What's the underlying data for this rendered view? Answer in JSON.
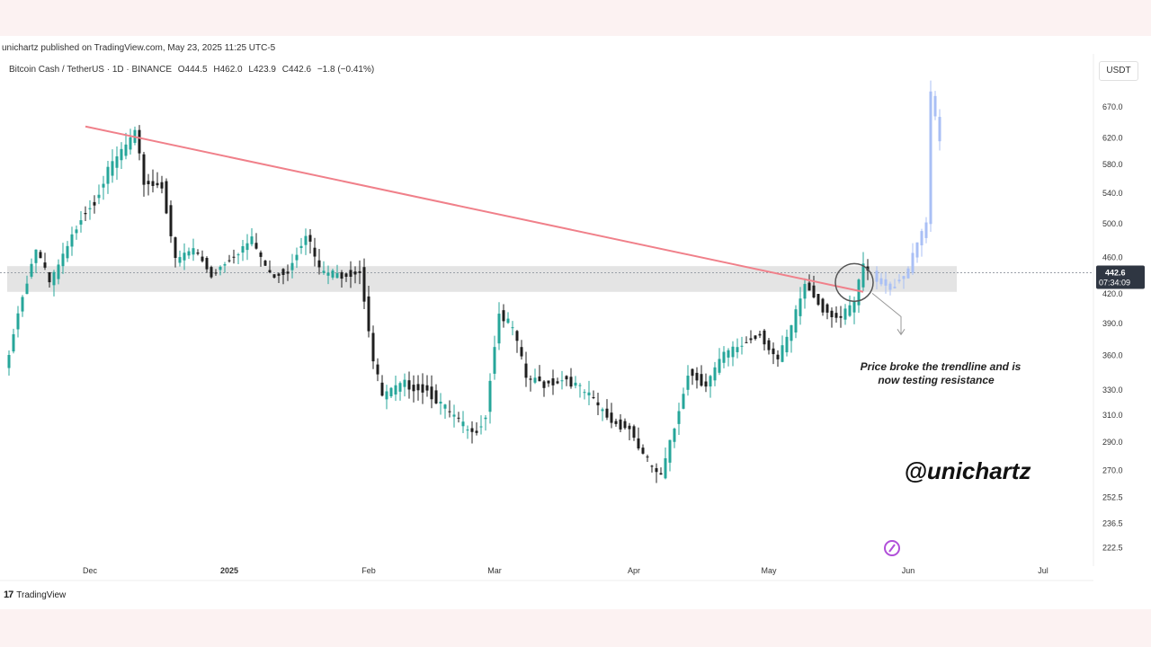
{
  "publisher_line": "unichartz published on TradingView.com, May 23, 2025 11:25 UTC-5",
  "symbol": {
    "name": "Bitcoin Cash / TetherUS · 1D · BINANCE",
    "open": "O444.5",
    "high": "H462.0",
    "low": "L423.9",
    "close": "C442.6",
    "change": "−1.8 (−0.41%)"
  },
  "unit_label": "USDT",
  "brand": "TradingView",
  "colors": {
    "up": "#26a69a",
    "down": "#1f1f1f",
    "trendline": "#f0808a",
    "resistance_band": "#e4e4e4",
    "projection": "#a9bff5",
    "price_label_bg": "#2f3642"
  },
  "annotation": {
    "line1": "Price broke the trendline and is",
    "line2": "now testing resistance"
  },
  "watermark": "@unichartz",
  "chart_data": {
    "type": "candlestick",
    "title": "Bitcoin Cash / TetherUS · 1D · BINANCE",
    "ylabel": "USDT",
    "y_scale": "log",
    "ylim": [
      215,
      715
    ],
    "x_ticks": [
      "Dec",
      "2025",
      "Feb",
      "Mar",
      "Apr",
      "May",
      "Jun",
      "Jul"
    ],
    "y_ticks": [
      670.0,
      620.0,
      580.0,
      540.0,
      500.0,
      460.0,
      420.0,
      390.0,
      360.0,
      330.0,
      310.0,
      290.0,
      270.0,
      252.5,
      236.5,
      222.5
    ],
    "last_price": "442.6",
    "countdown": "07:34:09",
    "grid": false,
    "trendline": {
      "from": {
        "date": "2024-11-30",
        "price": 638
      },
      "to": {
        "date": "2025-05-22",
        "price": 422
      }
    },
    "resistance_zone": [
      422,
      450
    ],
    "price_path": [
      {
        "date": "2024-11-12",
        "price": 345
      },
      {
        "date": "2024-11-15",
        "price": 400
      },
      {
        "date": "2024-11-19",
        "price": 470
      },
      {
        "date": "2024-11-22",
        "price": 430
      },
      {
        "date": "2024-11-26",
        "price": 470
      },
      {
        "date": "2024-11-29",
        "price": 510
      },
      {
        "date": "2024-12-02",
        "price": 530
      },
      {
        "date": "2024-12-05",
        "price": 570
      },
      {
        "date": "2024-12-08",
        "price": 600
      },
      {
        "date": "2024-12-11",
        "price": 625
      },
      {
        "date": "2024-12-13",
        "price": 555
      },
      {
        "date": "2024-12-17",
        "price": 550
      },
      {
        "date": "2024-12-20",
        "price": 455
      },
      {
        "date": "2024-12-24",
        "price": 470
      },
      {
        "date": "2024-12-28",
        "price": 440
      },
      {
        "date": "2025-01-01",
        "price": 460
      },
      {
        "date": "2025-01-06",
        "price": 480
      },
      {
        "date": "2025-01-10",
        "price": 440
      },
      {
        "date": "2025-01-14",
        "price": 445
      },
      {
        "date": "2025-01-18",
        "price": 490
      },
      {
        "date": "2025-01-21",
        "price": 445
      },
      {
        "date": "2025-01-25",
        "price": 440
      },
      {
        "date": "2025-01-30",
        "price": 445
      },
      {
        "date": "2025-02-02",
        "price": 355
      },
      {
        "date": "2025-02-04",
        "price": 325
      },
      {
        "date": "2025-02-09",
        "price": 335
      },
      {
        "date": "2025-02-14",
        "price": 330
      },
      {
        "date": "2025-02-18",
        "price": 315
      },
      {
        "date": "2025-02-24",
        "price": 295
      },
      {
        "date": "2025-02-27",
        "price": 310
      },
      {
        "date": "2025-03-02",
        "price": 400
      },
      {
        "date": "2025-03-05",
        "price": 385
      },
      {
        "date": "2025-03-08",
        "price": 340
      },
      {
        "date": "2025-03-12",
        "price": 335
      },
      {
        "date": "2025-03-17",
        "price": 340
      },
      {
        "date": "2025-03-22",
        "price": 325
      },
      {
        "date": "2025-03-27",
        "price": 305
      },
      {
        "date": "2025-03-31",
        "price": 300
      },
      {
        "date": "2025-04-03",
        "price": 280
      },
      {
        "date": "2025-04-07",
        "price": 265
      },
      {
        "date": "2025-04-10",
        "price": 300
      },
      {
        "date": "2025-04-13",
        "price": 345
      },
      {
        "date": "2025-04-17",
        "price": 335
      },
      {
        "date": "2025-04-21",
        "price": 360
      },
      {
        "date": "2025-04-25",
        "price": 370
      },
      {
        "date": "2025-04-29",
        "price": 380
      },
      {
        "date": "2025-05-03",
        "price": 355
      },
      {
        "date": "2025-05-06",
        "price": 385
      },
      {
        "date": "2025-05-09",
        "price": 430
      },
      {
        "date": "2025-05-13",
        "price": 405
      },
      {
        "date": "2025-05-17",
        "price": 395
      },
      {
        "date": "2025-05-20",
        "price": 410
      },
      {
        "date": "2025-05-22",
        "price": 452
      },
      {
        "date": "2025-05-23",
        "price": 442.6
      }
    ],
    "projection_path": [
      {
        "date": "2025-05-24",
        "price": 440
      },
      {
        "date": "2025-05-28",
        "price": 425
      },
      {
        "date": "2025-06-01",
        "price": 445
      },
      {
        "date": "2025-06-03",
        "price": 475
      },
      {
        "date": "2025-06-05",
        "price": 500
      },
      {
        "date": "2025-06-06",
        "price": 690
      },
      {
        "date": "2025-06-08",
        "price": 610
      }
    ]
  }
}
